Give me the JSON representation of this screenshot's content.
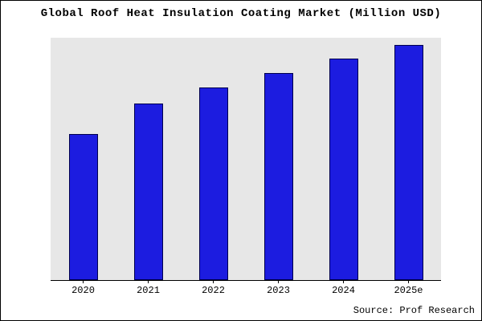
{
  "chart_data": {
    "type": "bar",
    "title": "Global Roof Heat Insulation Coating Market (Million USD)",
    "categories": [
      "2020",
      "2021",
      "2022",
      "2023",
      "2024",
      "2025e"
    ],
    "values": [
      62,
      75,
      82,
      88,
      94,
      100
    ],
    "xlabel": "",
    "ylabel": "",
    "ylim": [
      0,
      103
    ],
    "grid": false,
    "legend": "none",
    "bar_color": "#1c1ce0",
    "bar_border_color": "#00004d",
    "plot_bg": "#e7e7e7"
  },
  "source": "Source: Prof Research"
}
